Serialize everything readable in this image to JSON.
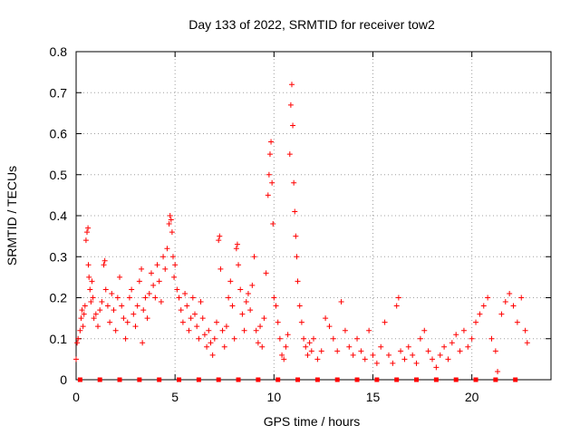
{
  "chart_data": {
    "type": "scatter",
    "title": "Day 133 of 2022, SRMTID for receiver tow2",
    "xlabel": "GPS time / hours",
    "ylabel": "SRMTID / TECUs",
    "xlim": [
      0,
      24
    ],
    "ylim": [
      0,
      0.8
    ],
    "xticks": [
      0,
      5,
      10,
      15,
      20
    ],
    "xtick_labels": [
      "0",
      "5",
      "10",
      "15",
      "20"
    ],
    "yticks": [
      0,
      0.1,
      0.2,
      0.3,
      0.4,
      0.5,
      0.6,
      0.7,
      0.8
    ],
    "ytick_labels": [
      "0",
      "0.1",
      "0.2",
      "0.3",
      "0.4",
      "0.5",
      "0.6",
      "0.7",
      "0.8"
    ],
    "grid": true,
    "marker": "plus",
    "series": [
      {
        "name": "SRMTID",
        "color": "#ff0000",
        "points": [
          [
            0.0,
            0.05
          ],
          [
            0.05,
            0.09
          ],
          [
            0.1,
            0.1
          ],
          [
            0.2,
            0.12
          ],
          [
            0.25,
            0.15
          ],
          [
            0.3,
            0.17
          ],
          [
            0.35,
            0.13
          ],
          [
            0.4,
            0.16
          ],
          [
            0.45,
            0.18
          ],
          [
            0.5,
            0.34
          ],
          [
            0.55,
            0.36
          ],
          [
            0.6,
            0.37
          ],
          [
            0.62,
            0.28
          ],
          [
            0.65,
            0.25
          ],
          [
            0.7,
            0.22
          ],
          [
            0.75,
            0.19
          ],
          [
            0.8,
            0.24
          ],
          [
            0.85,
            0.2
          ],
          [
            0.9,
            0.15
          ],
          [
            1.0,
            0.16
          ],
          [
            1.1,
            0.13
          ],
          [
            1.2,
            0.17
          ],
          [
            1.3,
            0.19
          ],
          [
            1.4,
            0.28
          ],
          [
            1.45,
            0.29
          ],
          [
            1.5,
            0.22
          ],
          [
            1.6,
            0.18
          ],
          [
            1.7,
            0.14
          ],
          [
            1.8,
            0.21
          ],
          [
            1.9,
            0.17
          ],
          [
            2.0,
            0.12
          ],
          [
            2.1,
            0.2
          ],
          [
            2.2,
            0.25
          ],
          [
            2.3,
            0.18
          ],
          [
            2.4,
            0.15
          ],
          [
            2.5,
            0.1
          ],
          [
            2.6,
            0.14
          ],
          [
            2.7,
            0.2
          ],
          [
            2.8,
            0.22
          ],
          [
            2.9,
            0.16
          ],
          [
            3.0,
            0.13
          ],
          [
            3.1,
            0.18
          ],
          [
            3.2,
            0.24
          ],
          [
            3.3,
            0.27
          ],
          [
            3.35,
            0.09
          ],
          [
            3.4,
            0.17
          ],
          [
            3.5,
            0.2
          ],
          [
            3.6,
            0.15
          ],
          [
            3.7,
            0.21
          ],
          [
            3.8,
            0.26
          ],
          [
            3.9,
            0.23
          ],
          [
            4.0,
            0.2
          ],
          [
            4.1,
            0.28
          ],
          [
            4.2,
            0.24
          ],
          [
            4.3,
            0.19
          ],
          [
            4.4,
            0.3
          ],
          [
            4.5,
            0.27
          ],
          [
            4.6,
            0.32
          ],
          [
            4.7,
            0.38
          ],
          [
            4.75,
            0.4
          ],
          [
            4.8,
            0.39
          ],
          [
            4.85,
            0.36
          ],
          [
            4.9,
            0.3
          ],
          [
            4.95,
            0.25
          ],
          [
            5.0,
            0.28
          ],
          [
            5.1,
            0.22
          ],
          [
            5.2,
            0.2
          ],
          [
            5.3,
            0.17
          ],
          [
            5.4,
            0.14
          ],
          [
            5.5,
            0.21
          ],
          [
            5.6,
            0.18
          ],
          [
            5.7,
            0.12
          ],
          [
            5.8,
            0.15
          ],
          [
            5.9,
            0.2
          ],
          [
            6.0,
            0.16
          ],
          [
            6.1,
            0.13
          ],
          [
            6.2,
            0.1
          ],
          [
            6.3,
            0.19
          ],
          [
            6.4,
            0.15
          ],
          [
            6.5,
            0.11
          ],
          [
            6.6,
            0.08
          ],
          [
            6.7,
            0.12
          ],
          [
            6.8,
            0.09
          ],
          [
            6.9,
            0.06
          ],
          [
            7.0,
            0.1
          ],
          [
            7.1,
            0.14
          ],
          [
            7.2,
            0.34
          ],
          [
            7.25,
            0.35
          ],
          [
            7.3,
            0.27
          ],
          [
            7.4,
            0.12
          ],
          [
            7.5,
            0.08
          ],
          [
            7.6,
            0.13
          ],
          [
            7.7,
            0.2
          ],
          [
            7.8,
            0.24
          ],
          [
            7.9,
            0.18
          ],
          [
            8.0,
            0.1
          ],
          [
            8.1,
            0.32
          ],
          [
            8.15,
            0.33
          ],
          [
            8.2,
            0.28
          ],
          [
            8.3,
            0.22
          ],
          [
            8.4,
            0.16
          ],
          [
            8.5,
            0.12
          ],
          [
            8.6,
            0.19
          ],
          [
            8.7,
            0.21
          ],
          [
            8.8,
            0.17
          ],
          [
            8.9,
            0.23
          ],
          [
            9.0,
            0.3
          ],
          [
            9.1,
            0.12
          ],
          [
            9.2,
            0.09
          ],
          [
            9.3,
            0.13
          ],
          [
            9.4,
            0.08
          ],
          [
            9.5,
            0.15
          ],
          [
            9.6,
            0.26
          ],
          [
            9.7,
            0.45
          ],
          [
            9.75,
            0.5
          ],
          [
            9.8,
            0.55
          ],
          [
            9.85,
            0.58
          ],
          [
            9.9,
            0.48
          ],
          [
            9.95,
            0.38
          ],
          [
            10.0,
            0.2
          ],
          [
            10.1,
            0.18
          ],
          [
            10.2,
            0.14
          ],
          [
            10.3,
            0.1
          ],
          [
            10.4,
            0.06
          ],
          [
            10.5,
            0.05
          ],
          [
            10.6,
            0.08
          ],
          [
            10.7,
            0.11
          ],
          [
            10.8,
            0.55
          ],
          [
            10.85,
            0.67
          ],
          [
            10.9,
            0.72
          ],
          [
            10.95,
            0.62
          ],
          [
            11.0,
            0.48
          ],
          [
            11.05,
            0.41
          ],
          [
            11.1,
            0.35
          ],
          [
            11.15,
            0.3
          ],
          [
            11.2,
            0.24
          ],
          [
            11.3,
            0.18
          ],
          [
            11.4,
            0.14
          ],
          [
            11.5,
            0.1
          ],
          [
            11.6,
            0.08
          ],
          [
            11.7,
            0.06
          ],
          [
            11.8,
            0.09
          ],
          [
            11.9,
            0.07
          ],
          [
            12.0,
            0.1
          ],
          [
            12.2,
            0.05
          ],
          [
            12.4,
            0.07
          ],
          [
            12.6,
            0.15
          ],
          [
            12.8,
            0.13
          ],
          [
            13.0,
            0.1
          ],
          [
            13.2,
            0.07
          ],
          [
            13.4,
            0.19
          ],
          [
            13.6,
            0.12
          ],
          [
            13.8,
            0.08
          ],
          [
            14.0,
            0.06
          ],
          [
            14.2,
            0.1
          ],
          [
            14.4,
            0.07
          ],
          [
            14.6,
            0.05
          ],
          [
            14.8,
            0.12
          ],
          [
            15.0,
            0.06
          ],
          [
            15.2,
            0.04
          ],
          [
            15.4,
            0.08
          ],
          [
            15.6,
            0.14
          ],
          [
            15.8,
            0.06
          ],
          [
            16.0,
            0.04
          ],
          [
            16.2,
            0.18
          ],
          [
            16.3,
            0.2
          ],
          [
            16.4,
            0.07
          ],
          [
            16.6,
            0.05
          ],
          [
            16.8,
            0.08
          ],
          [
            17.0,
            0.06
          ],
          [
            17.2,
            0.04
          ],
          [
            17.4,
            0.1
          ],
          [
            17.6,
            0.12
          ],
          [
            17.8,
            0.07
          ],
          [
            18.0,
            0.05
          ],
          [
            18.2,
            0.03
          ],
          [
            18.4,
            0.06
          ],
          [
            18.6,
            0.08
          ],
          [
            18.8,
            0.05
          ],
          [
            19.0,
            0.09
          ],
          [
            19.2,
            0.11
          ],
          [
            19.4,
            0.07
          ],
          [
            19.6,
            0.12
          ],
          [
            19.8,
            0.08
          ],
          [
            20.0,
            0.1
          ],
          [
            20.2,
            0.14
          ],
          [
            20.4,
            0.16
          ],
          [
            20.6,
            0.18
          ],
          [
            20.8,
            0.2
          ],
          [
            21.0,
            0.1
          ],
          [
            21.2,
            0.07
          ],
          [
            21.3,
            0.02
          ],
          [
            21.5,
            0.16
          ],
          [
            21.7,
            0.19
          ],
          [
            21.9,
            0.21
          ],
          [
            22.1,
            0.18
          ],
          [
            22.3,
            0.14
          ],
          [
            22.5,
            0.2
          ],
          [
            22.7,
            0.12
          ],
          [
            22.8,
            0.09
          ]
        ]
      }
    ],
    "zero_markers_x": [
      0.2,
      1.2,
      2.2,
      3.2,
      4.2,
      5.2,
      6.2,
      7.2,
      8.2,
      9.2,
      10.2,
      11.2,
      12.2,
      13.2,
      14.2,
      15.2,
      16.2,
      17.2,
      18.2,
      19.2,
      20.2,
      21.2,
      22.2
    ]
  }
}
